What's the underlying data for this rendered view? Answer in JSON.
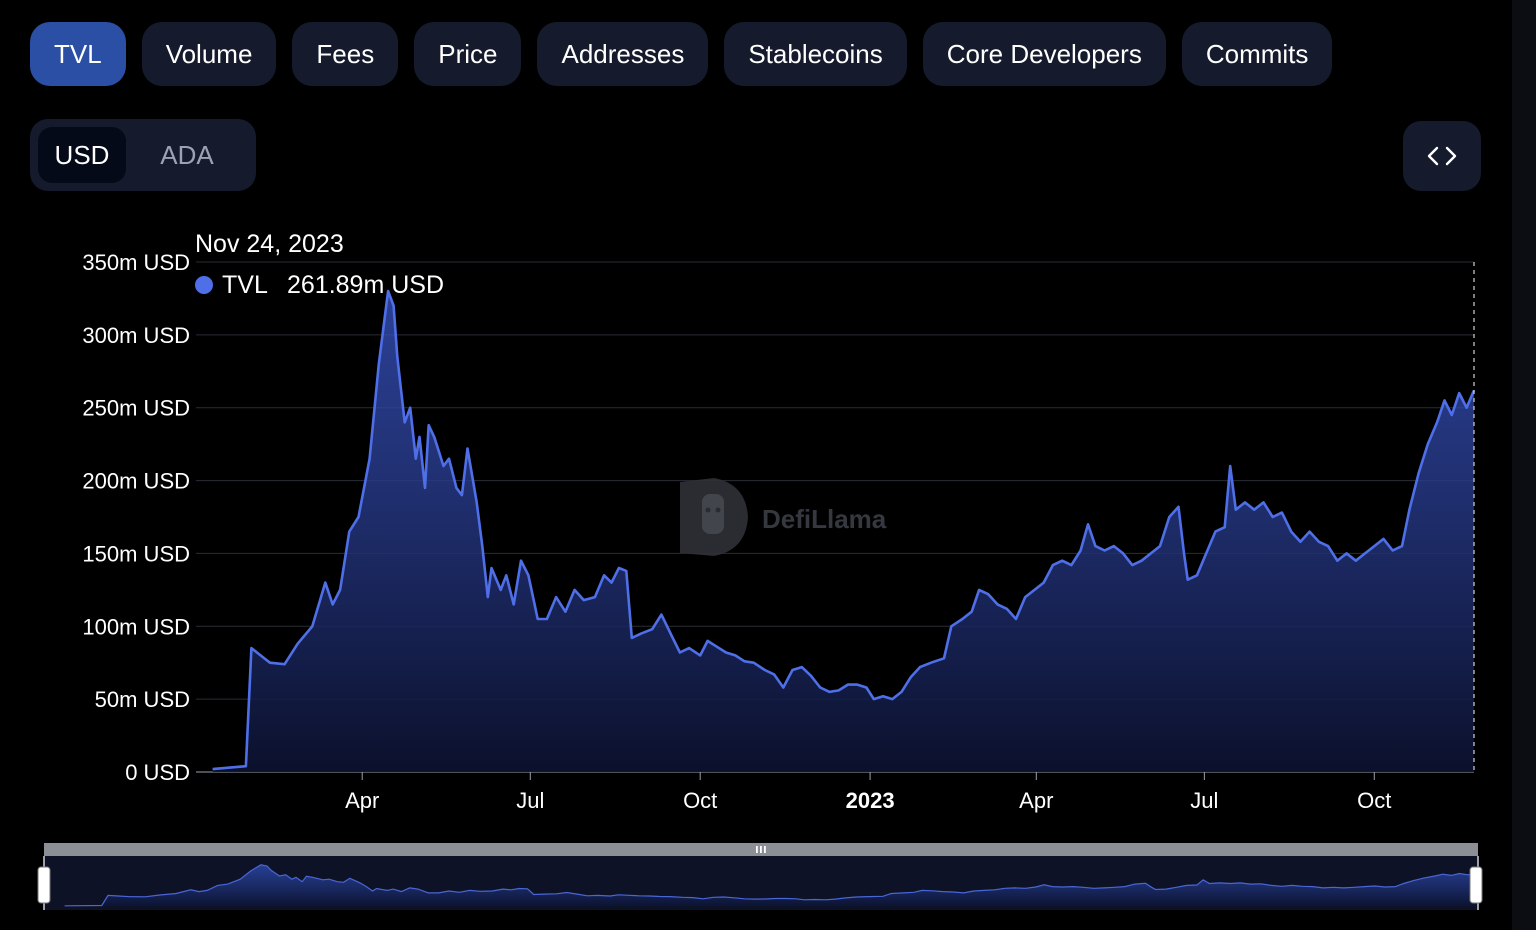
{
  "tabs": [
    {
      "label": "TVL",
      "active": true
    },
    {
      "label": "Volume",
      "active": false
    },
    {
      "label": "Fees",
      "active": false
    },
    {
      "label": "Price",
      "active": false
    },
    {
      "label": "Addresses",
      "active": false
    },
    {
      "label": "Stablecoins",
      "active": false
    },
    {
      "label": "Core Developers",
      "active": false
    },
    {
      "label": "Commits",
      "active": false
    }
  ],
  "currency_toggle": {
    "options": [
      "USD",
      "ADA"
    ],
    "selected": "USD"
  },
  "embed_icon": "code-brackets-icon",
  "watermark": {
    "label": "DefiLlama",
    "icon": "llama-logo-icon"
  },
  "tooltip": {
    "date": "Nov 24, 2023",
    "series": "TVL",
    "value": "261.89m USD",
    "marker_color": "#4f6fe8"
  },
  "chart_data": {
    "type": "area",
    "series": [
      {
        "name": "TVL",
        "color": "#4f6fe8"
      }
    ],
    "ylim": [
      0,
      350
    ],
    "y_unit": "m USD",
    "y_ticks": [
      "0 USD",
      "50m USD",
      "100m USD",
      "150m USD",
      "200m USD",
      "250m USD",
      "300m USD",
      "350m USD"
    ],
    "x_ticks": [
      {
        "label": "Apr",
        "date": "2022-04-01",
        "bold": false
      },
      {
        "label": "Jul",
        "date": "2022-07-01",
        "bold": false
      },
      {
        "label": "Oct",
        "date": "2022-10-01",
        "bold": false
      },
      {
        "label": "2023",
        "date": "2023-01-01",
        "bold": true
      },
      {
        "label": "Apr",
        "date": "2023-04-01",
        "bold": false
      },
      {
        "label": "Jul",
        "date": "2023-07-01",
        "bold": false
      },
      {
        "label": "Oct",
        "date": "2023-10-01",
        "bold": false
      }
    ],
    "grid": true,
    "points": [
      [
        "2022-01-10",
        2
      ],
      [
        "2022-01-28",
        4
      ],
      [
        "2022-01-31",
        85
      ],
      [
        "2022-02-05",
        80
      ],
      [
        "2022-02-10",
        75
      ],
      [
        "2022-02-18",
        74
      ],
      [
        "2022-02-25",
        88
      ],
      [
        "2022-03-05",
        100
      ],
      [
        "2022-03-12",
        130
      ],
      [
        "2022-03-16",
        115
      ],
      [
        "2022-03-20",
        125
      ],
      [
        "2022-03-25",
        165
      ],
      [
        "2022-03-30",
        175
      ],
      [
        "2022-04-05",
        215
      ],
      [
        "2022-04-10",
        280
      ],
      [
        "2022-04-15",
        330
      ],
      [
        "2022-04-18",
        320
      ],
      [
        "2022-04-20",
        285
      ],
      [
        "2022-04-24",
        240
      ],
      [
        "2022-04-27",
        250
      ],
      [
        "2022-04-30",
        215
      ],
      [
        "2022-05-02",
        230
      ],
      [
        "2022-05-05",
        195
      ],
      [
        "2022-05-07",
        238
      ],
      [
        "2022-05-10",
        230
      ],
      [
        "2022-05-15",
        210
      ],
      [
        "2022-05-18",
        215
      ],
      [
        "2022-05-22",
        195
      ],
      [
        "2022-05-25",
        190
      ],
      [
        "2022-05-28",
        222
      ],
      [
        "2022-06-02",
        185
      ],
      [
        "2022-06-05",
        155
      ],
      [
        "2022-06-08",
        120
      ],
      [
        "2022-06-10",
        140
      ],
      [
        "2022-06-15",
        125
      ],
      [
        "2022-06-18",
        135
      ],
      [
        "2022-06-22",
        115
      ],
      [
        "2022-06-26",
        145
      ],
      [
        "2022-06-30",
        135
      ],
      [
        "2022-07-05",
        105
      ],
      [
        "2022-07-10",
        105
      ],
      [
        "2022-07-15",
        120
      ],
      [
        "2022-07-20",
        110
      ],
      [
        "2022-07-25",
        125
      ],
      [
        "2022-07-30",
        118
      ],
      [
        "2022-08-05",
        120
      ],
      [
        "2022-08-10",
        135
      ],
      [
        "2022-08-14",
        130
      ],
      [
        "2022-08-18",
        140
      ],
      [
        "2022-08-22",
        138
      ],
      [
        "2022-08-25",
        92
      ],
      [
        "2022-08-30",
        95
      ],
      [
        "2022-09-05",
        98
      ],
      [
        "2022-09-10",
        108
      ],
      [
        "2022-09-15",
        95
      ],
      [
        "2022-09-20",
        82
      ],
      [
        "2022-09-25",
        85
      ],
      [
        "2022-10-01",
        80
      ],
      [
        "2022-10-05",
        90
      ],
      [
        "2022-10-10",
        86
      ],
      [
        "2022-10-15",
        82
      ],
      [
        "2022-10-20",
        80
      ],
      [
        "2022-10-25",
        76
      ],
      [
        "2022-10-30",
        75
      ],
      [
        "2022-11-05",
        70
      ],
      [
        "2022-11-10",
        67
      ],
      [
        "2022-11-15",
        58
      ],
      [
        "2022-11-20",
        70
      ],
      [
        "2022-11-25",
        72
      ],
      [
        "2022-11-30",
        66
      ],
      [
        "2022-12-05",
        58
      ],
      [
        "2022-12-10",
        55
      ],
      [
        "2022-12-15",
        56
      ],
      [
        "2022-12-20",
        60
      ],
      [
        "2022-12-25",
        60
      ],
      [
        "2022-12-30",
        58
      ],
      [
        "2023-01-03",
        50
      ],
      [
        "2023-01-08",
        52
      ],
      [
        "2023-01-13",
        50
      ],
      [
        "2023-01-18",
        55
      ],
      [
        "2023-01-23",
        65
      ],
      [
        "2023-01-28",
        72
      ],
      [
        "2023-02-03",
        75
      ],
      [
        "2023-02-10",
        78
      ],
      [
        "2023-02-14",
        100
      ],
      [
        "2023-02-20",
        105
      ],
      [
        "2023-02-25",
        110
      ],
      [
        "2023-03-01",
        125
      ],
      [
        "2023-03-06",
        122
      ],
      [
        "2023-03-11",
        115
      ],
      [
        "2023-03-16",
        112
      ],
      [
        "2023-03-21",
        105
      ],
      [
        "2023-03-26",
        120
      ],
      [
        "2023-03-31",
        125
      ],
      [
        "2023-04-05",
        130
      ],
      [
        "2023-04-10",
        142
      ],
      [
        "2023-04-15",
        145
      ],
      [
        "2023-04-20",
        142
      ],
      [
        "2023-04-25",
        152
      ],
      [
        "2023-04-29",
        170
      ],
      [
        "2023-05-03",
        155
      ],
      [
        "2023-05-08",
        152
      ],
      [
        "2023-05-13",
        155
      ],
      [
        "2023-05-18",
        150
      ],
      [
        "2023-05-23",
        142
      ],
      [
        "2023-05-28",
        145
      ],
      [
        "2023-06-02",
        150
      ],
      [
        "2023-06-07",
        155
      ],
      [
        "2023-06-12",
        175
      ],
      [
        "2023-06-17",
        182
      ],
      [
        "2023-06-20",
        150
      ],
      [
        "2023-06-22",
        132
      ],
      [
        "2023-06-27",
        135
      ],
      [
        "2023-07-02",
        150
      ],
      [
        "2023-07-07",
        165
      ],
      [
        "2023-07-12",
        168
      ],
      [
        "2023-07-15",
        210
      ],
      [
        "2023-07-18",
        180
      ],
      [
        "2023-07-23",
        185
      ],
      [
        "2023-07-28",
        180
      ],
      [
        "2023-08-02",
        185
      ],
      [
        "2023-08-07",
        175
      ],
      [
        "2023-08-12",
        178
      ],
      [
        "2023-08-17",
        165
      ],
      [
        "2023-08-22",
        158
      ],
      [
        "2023-08-27",
        165
      ],
      [
        "2023-09-01",
        158
      ],
      [
        "2023-09-06",
        155
      ],
      [
        "2023-09-11",
        145
      ],
      [
        "2023-09-16",
        150
      ],
      [
        "2023-09-21",
        145
      ],
      [
        "2023-09-26",
        150
      ],
      [
        "2023-10-01",
        155
      ],
      [
        "2023-10-06",
        160
      ],
      [
        "2023-10-11",
        152
      ],
      [
        "2023-10-16",
        155
      ],
      [
        "2023-10-20",
        180
      ],
      [
        "2023-10-25",
        205
      ],
      [
        "2023-10-30",
        225
      ],
      [
        "2023-11-04",
        240
      ],
      [
        "2023-11-08",
        255
      ],
      [
        "2023-11-12",
        245
      ],
      [
        "2023-11-16",
        260
      ],
      [
        "2023-11-20",
        250
      ],
      [
        "2023-11-24",
        261.89
      ]
    ],
    "selected_point": {
      "date": "2023-11-24",
      "value": 261.89
    }
  }
}
